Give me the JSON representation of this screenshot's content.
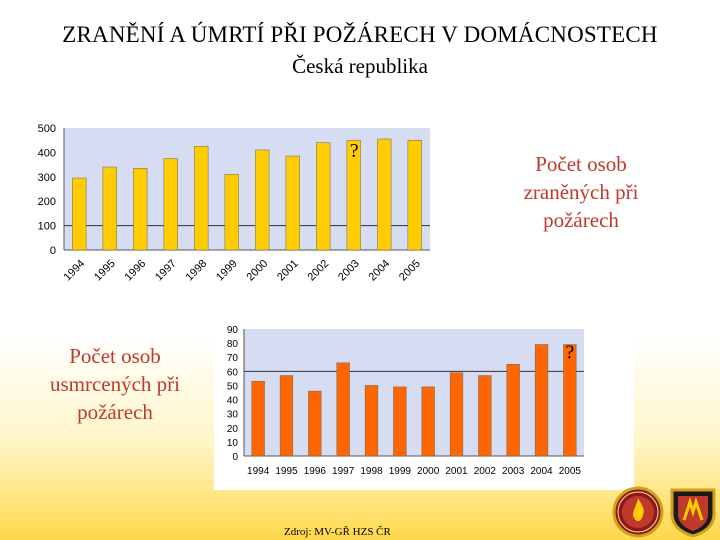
{
  "header": {
    "title": "ZRANĚNÍ A ÚMRTÍ PŘI POŽÁRECH V DOMÁCNOSTECH",
    "subtitle": "Česká republika"
  },
  "captions": {
    "injured": "Počet osob zraněných při požárech",
    "deaths": "Počet osob usmrcených při požárech"
  },
  "source": "Zdroj: MV-GŘ HZS ČR",
  "colors": {
    "injured_bar": "#ffcc00",
    "deaths_bar": "#ff6600",
    "plot_bg": "#d6dcf2",
    "caption": "#c0392b"
  },
  "chart_data": [
    {
      "type": "bar",
      "categories": [
        "1994",
        "1995",
        "1996",
        "1997",
        "1998",
        "1999",
        "2000",
        "2001",
        "2002",
        "2003",
        "2004",
        "2005"
      ],
      "values": [
        295,
        340,
        335,
        375,
        425,
        310,
        410,
        385,
        440,
        450,
        455,
        450
      ],
      "ylim": [
        0,
        500
      ],
      "yticks": [
        "0",
        "100",
        "200",
        "300",
        "400",
        "500"
      ],
      "annotation": "?",
      "grid": false
    },
    {
      "type": "bar",
      "categories": [
        "1994",
        "1995",
        "1996",
        "1997",
        "1998",
        "1999",
        "2000",
        "2001",
        "2002",
        "2003",
        "2004",
        "2005"
      ],
      "values": [
        53,
        57,
        46,
        66,
        50,
        49,
        49,
        59,
        57,
        65,
        79,
        79
      ],
      "ylim": [
        0,
        90
      ],
      "yticks": [
        "0",
        "10",
        "20",
        "30",
        "40",
        "50",
        "60",
        "70",
        "80",
        "90"
      ],
      "annotation": "?",
      "grid": false
    }
  ]
}
